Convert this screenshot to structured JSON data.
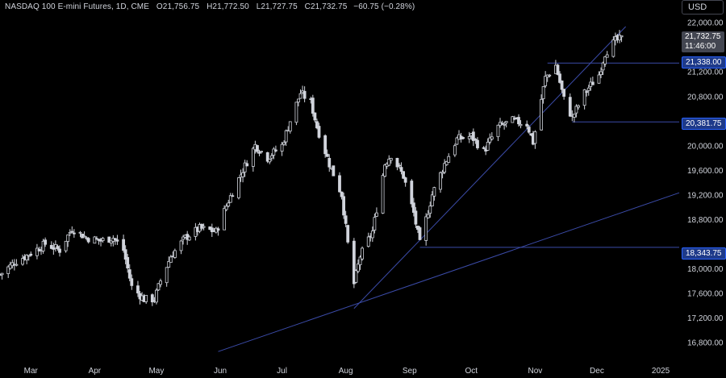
{
  "header": {
    "symbol": "NASDAQ 100 E-mini Futures, 1D, CME",
    "open_label": "O",
    "open": "21,756.75",
    "high_label": "H",
    "high": "21,772.50",
    "low_label": "L",
    "low": "21,727.75",
    "close_label": "C",
    "close": "21,732.75",
    "change": "−60.75 (−0.28%)"
  },
  "currency_button": "USD",
  "price_tag": {
    "price": "21,732.75",
    "countdown": "11:46:00"
  },
  "level_tags": [
    "21,338.00",
    "20,381.75",
    "18,343.75"
  ],
  "colors": {
    "background": "#000000",
    "candle": "#d1d4dc",
    "lines": "#3b4ba8",
    "label_bg": "#1e3a8a",
    "label_border": "#2962ff"
  },
  "chart_data": {
    "type": "candlestick",
    "symbol": "NASDAQ 100 E-mini Futures",
    "timeframe": "1D",
    "exchange": "CME",
    "x_tick_labels": [
      "Mar",
      "Apr",
      "May",
      "Jun",
      "Jul",
      "Aug",
      "Sep",
      "Oct",
      "Nov",
      "Dec",
      "2025"
    ],
    "x_tick_dates": [
      "2024-03-01",
      "2024-04-01",
      "2024-05-01",
      "2024-06-01",
      "2024-07-01",
      "2024-08-01",
      "2024-09-01",
      "2024-10-01",
      "2024-11-01",
      "2024-12-01",
      "2025-01-01"
    ],
    "y_tick_labels": [
      "16,800.00",
      "17,200.00",
      "17,600.00",
      "18,000.00",
      "18,800.00",
      "19,200.00",
      "19,600.00",
      "20,000.00",
      "20,800.00",
      "21,200.00",
      "22,000.00"
    ],
    "ylim": [
      16600,
      22100
    ],
    "xlim": [
      "2024-02-15",
      "2025-01-10"
    ],
    "grid": false,
    "horizontal_levels": [
      {
        "price": 21338.0,
        "from": "2024-11-07"
      },
      {
        "price": 20381.75,
        "from": "2024-11-19"
      },
      {
        "price": 18343.75,
        "from": "2024-09-06"
      }
    ],
    "trendlines": [
      {
        "from": {
          "date": "2024-05-31",
          "price": 16650
        },
        "to": {
          "date": "2025-01-10",
          "price": 19230
        }
      },
      {
        "from": {
          "date": "2024-08-05",
          "price": 17350
        },
        "to": {
          "date": "2024-12-15",
          "price": 21930
        }
      }
    ],
    "ohlc_keypoints": [
      [
        "2024-02-15",
        17900
      ],
      [
        "2024-02-22",
        18100
      ],
      [
        "2024-03-01",
        18250
      ],
      [
        "2024-03-08",
        18400
      ],
      [
        "2024-03-15",
        18300
      ],
      [
        "2024-03-21",
        18650
      ],
      [
        "2024-03-28",
        18500
      ],
      [
        "2024-04-04",
        18450
      ],
      [
        "2024-04-10",
        18500
      ],
      [
        "2024-04-15",
        18300
      ],
      [
        "2024-04-19",
        17700
      ],
      [
        "2024-04-25",
        17500
      ],
      [
        "2024-04-30",
        17500
      ],
      [
        "2024-05-03",
        17800
      ],
      [
        "2024-05-08",
        18200
      ],
      [
        "2024-05-15",
        18500
      ],
      [
        "2024-05-22",
        18650
      ],
      [
        "2024-05-30",
        18600
      ],
      [
        "2024-06-05",
        19100
      ],
      [
        "2024-06-12",
        19600
      ],
      [
        "2024-06-18",
        20000
      ],
      [
        "2024-06-24",
        19800
      ],
      [
        "2024-07-01",
        20000
      ],
      [
        "2024-07-05",
        20400
      ],
      [
        "2024-07-10",
        20850
      ],
      [
        "2024-07-15",
        20700
      ],
      [
        "2024-07-18",
        20300
      ],
      [
        "2024-07-24",
        19700
      ],
      [
        "2024-07-30",
        19200
      ],
      [
        "2024-08-02",
        18400
      ],
      [
        "2024-08-05",
        17750
      ],
      [
        "2024-08-08",
        18200
      ],
      [
        "2024-08-14",
        18600
      ],
      [
        "2024-08-20",
        19700
      ],
      [
        "2024-08-23",
        19850
      ],
      [
        "2024-08-29",
        19500
      ],
      [
        "2024-09-03",
        18900
      ],
      [
        "2024-09-06",
        18400
      ],
      [
        "2024-09-12",
        19200
      ],
      [
        "2024-09-18",
        19700
      ],
      [
        "2024-09-24",
        20100
      ],
      [
        "2024-10-01",
        20150
      ],
      [
        "2024-10-07",
        19900
      ],
      [
        "2024-10-14",
        20300
      ],
      [
        "2024-10-21",
        20400
      ],
      [
        "2024-10-28",
        20350
      ],
      [
        "2024-10-31",
        20050
      ],
      [
        "2024-11-06",
        21100
      ],
      [
        "2024-11-11",
        21300
      ],
      [
        "2024-11-15",
        20750
      ],
      [
        "2024-11-19",
        20450
      ],
      [
        "2024-11-25",
        20850
      ],
      [
        "2024-12-02",
        21150
      ],
      [
        "2024-12-05",
        21500
      ],
      [
        "2024-12-10",
        21700
      ],
      [
        "2024-12-13",
        21732.75
      ]
    ]
  }
}
